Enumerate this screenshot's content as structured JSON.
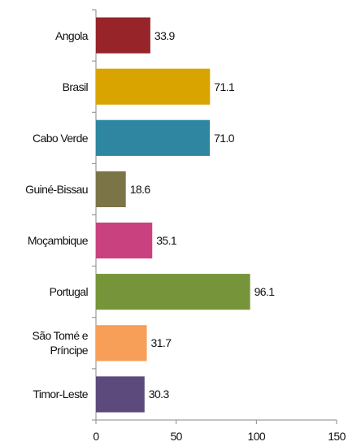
{
  "chart_data": {
    "type": "bar",
    "orientation": "horizontal",
    "categories": [
      "Angola",
      "Brasil",
      "Cabo Verde",
      "Guiné-Bissau",
      "Moçambique",
      "Portugal",
      "São Tomé e\nPríncipe",
      "Timor-Leste"
    ],
    "values": [
      33.9,
      71.1,
      71.0,
      18.6,
      35.1,
      96.1,
      31.7,
      30.3
    ],
    "value_labels": [
      "33.9",
      "71.1",
      "71.0",
      "18.6",
      "35.1",
      "96.1",
      "31.7",
      "30.3"
    ],
    "colors": [
      "#962428",
      "#d9a400",
      "#2e86a0",
      "#7b7446",
      "#c9427f",
      "#76953a",
      "#f79f58",
      "#5c4a7c"
    ],
    "xlim": [
      0,
      150
    ],
    "xticks": [
      0,
      50,
      100,
      150
    ],
    "grid": false
  }
}
